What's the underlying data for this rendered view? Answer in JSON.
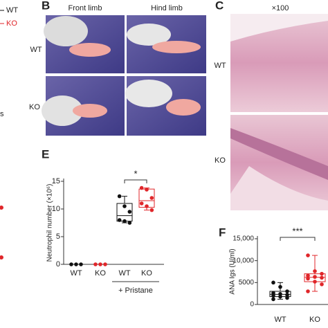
{
  "left_fragment": {
    "legend": [
      "WT",
      "KO"
    ],
    "text": "s"
  },
  "panel_b": {
    "label": "B",
    "columns": [
      "Front limb",
      "Hind limb"
    ],
    "rows": [
      "WT",
      "KO"
    ]
  },
  "panel_c": {
    "label": "C",
    "magnification": "×100",
    "rows": [
      "WT",
      "KO"
    ]
  },
  "chart_data": [
    {
      "type": "box",
      "label": "E",
      "ylabel": "Neutrophil number (×10⁶)",
      "categories": [
        "WT",
        "KO",
        "WT",
        "KO"
      ],
      "group_label": "+ Pristane",
      "colors": [
        "#111111",
        "#e0262a",
        "#111111",
        "#e0262a"
      ],
      "points": [
        [
          0,
          0,
          0
        ],
        [
          0,
          0,
          0
        ],
        [
          12.3,
          10.5,
          9.5,
          8,
          7.8,
          7.5
        ],
        [
          13.8,
          13.5,
          12,
          11,
          10.5,
          9.8
        ]
      ],
      "boxes": [
        null,
        null,
        {
          "min": 7.5,
          "q1": 7.8,
          "median": 8.8,
          "q3": 11,
          "max": 12.3
        },
        {
          "min": 9.8,
          "q1": 10.3,
          "median": 11.5,
          "q3": 13.6,
          "max": 13.8
        }
      ],
      "significance": "*",
      "ylim": [
        0,
        15
      ],
      "yticks": [
        0,
        5,
        10,
        15
      ]
    },
    {
      "type": "box",
      "label": "F",
      "ylabel": "ANA Igs (U/ml)",
      "categories": [
        "WT",
        "KO"
      ],
      "colors": [
        "#111111",
        "#e0262a"
      ],
      "points": [
        [
          5000,
          4000,
          3000,
          2600,
          2400,
          2200,
          2000,
          1800,
          1500,
          1200
        ],
        [
          11200,
          7600,
          7000,
          6600,
          6300,
          6100,
          5900,
          5200,
          4600,
          3000
        ]
      ],
      "boxes": [
        {
          "min": 1200,
          "q1": 1800,
          "median": 2300,
          "q3": 3000,
          "max": 5000
        },
        {
          "min": 3000,
          "q1": 5200,
          "median": 6200,
          "q3": 7000,
          "max": 11200
        }
      ],
      "significance": "***",
      "ylim": [
        0,
        15000
      ],
      "yticks": [
        0,
        5000,
        {
          "value": 10000,
          "label": "10,000"
        },
        {
          "value": 15000,
          "label": "15,000"
        }
      ]
    }
  ]
}
